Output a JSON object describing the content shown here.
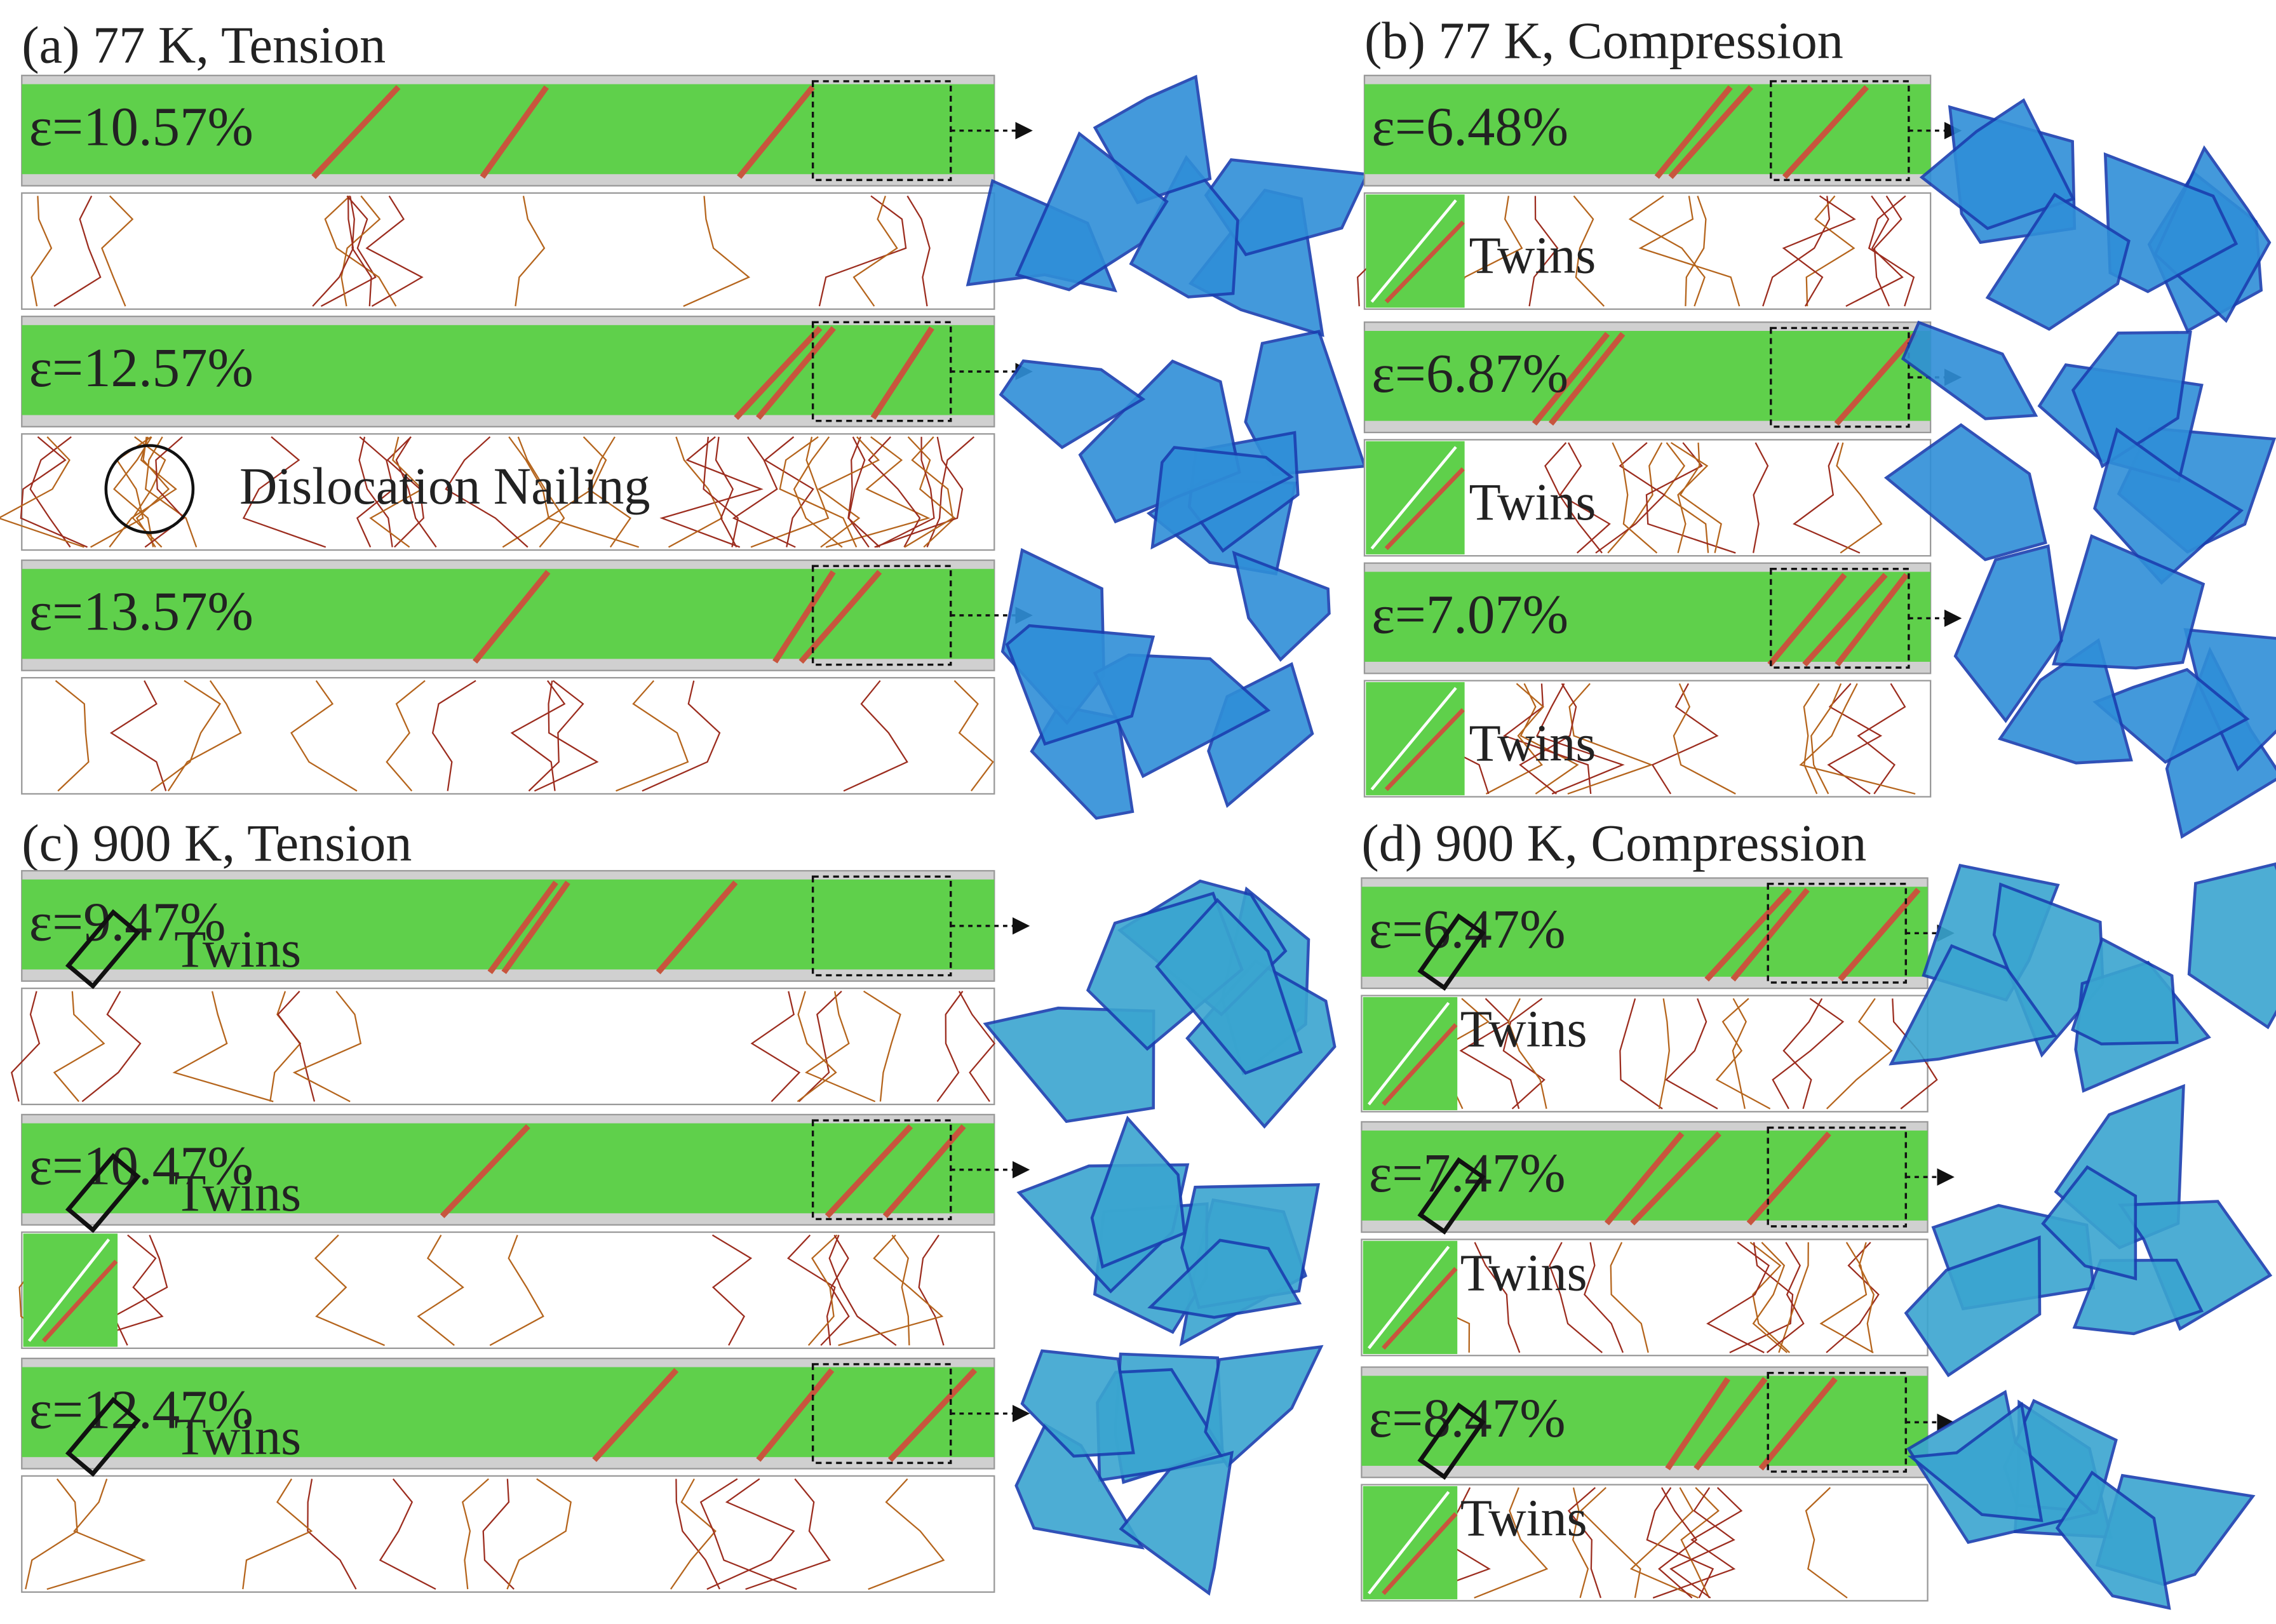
{
  "panels": [
    {
      "title": "(a) 77 K, Tension",
      "snapshots": [
        {
          "strain": "ε=10.57%"
        },
        {
          "strain": "ε=12.57%",
          "note": "Dislocation Nailing"
        },
        {
          "strain": "ε=13.57%"
        }
      ]
    },
    {
      "title": "(b) 77 K, Compression",
      "snapshots": [
        {
          "strain": "ε=6.48%",
          "note": "Twins"
        },
        {
          "strain": "ε=6.87%",
          "note": "Twins"
        },
        {
          "strain": "ε=7.07%",
          "note": "Twins"
        }
      ]
    },
    {
      "title": "(c) 900 K, Tension",
      "snapshots": [
        {
          "strain": "ε=9.47%",
          "note": "Twins"
        },
        {
          "strain": "ε=10.47%",
          "note": "Twins"
        },
        {
          "strain": "ε=12.47%",
          "note": "Twins"
        }
      ]
    },
    {
      "title": "(d) 900 K, Compression",
      "snapshots": [
        {
          "strain": "ε=6.47%",
          "note": "Twins"
        },
        {
          "strain": "ε=7.47%",
          "note": "Twins"
        },
        {
          "strain": "ε=8.47%",
          "note": "Twins"
        }
      ]
    }
  ]
}
